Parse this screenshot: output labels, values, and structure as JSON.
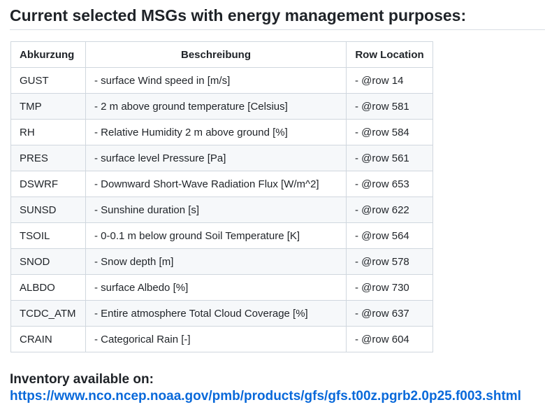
{
  "heading": "Current selected MSGs with energy management purposes:",
  "table": {
    "headers": [
      "Abkurzung",
      "Beschreibung",
      "Row Location"
    ],
    "rows": [
      [
        "GUST",
        "- surface Wind speed in [m/s]",
        "- @row 14"
      ],
      [
        "TMP",
        "- 2 m above ground temperature [Celsius]",
        "- @row 581"
      ],
      [
        "RH",
        "- Relative Humidity 2 m above ground [%]",
        "- @row 584"
      ],
      [
        "PRES",
        "- surface level Pressure [Pa]",
        "- @row 561"
      ],
      [
        "DSWRF",
        "- Downward Short-Wave Radiation Flux [W/m^2]",
        "- @row 653"
      ],
      [
        "SUNSD",
        "- Sunshine duration [s]",
        "- @row 622"
      ],
      [
        "TSOIL",
        "- 0-0.1 m below ground Soil Temperature [K]",
        "- @row 564"
      ],
      [
        "SNOD",
        "- Snow depth [m]",
        "- @row 578"
      ],
      [
        "ALBDO",
        "- surface Albedo [%]",
        "- @row 730"
      ],
      [
        "TCDC_ATM",
        "- Entire atmosphere Total Cloud Coverage [%]",
        "- @row 637"
      ],
      [
        "CRAIN",
        "- Categorical Rain [-]",
        "- @row 604"
      ]
    ]
  },
  "inventory": {
    "label": "Inventory available on:",
    "link_text": "https://www.nco.ncep.noaa.gov/pmb/products/gfs/gfs.t00z.pgrb2.0p25.f003.shtml"
  },
  "colors": {
    "link": "#0969da",
    "border": "#d0d7de",
    "stripe": "#f6f8fa"
  }
}
